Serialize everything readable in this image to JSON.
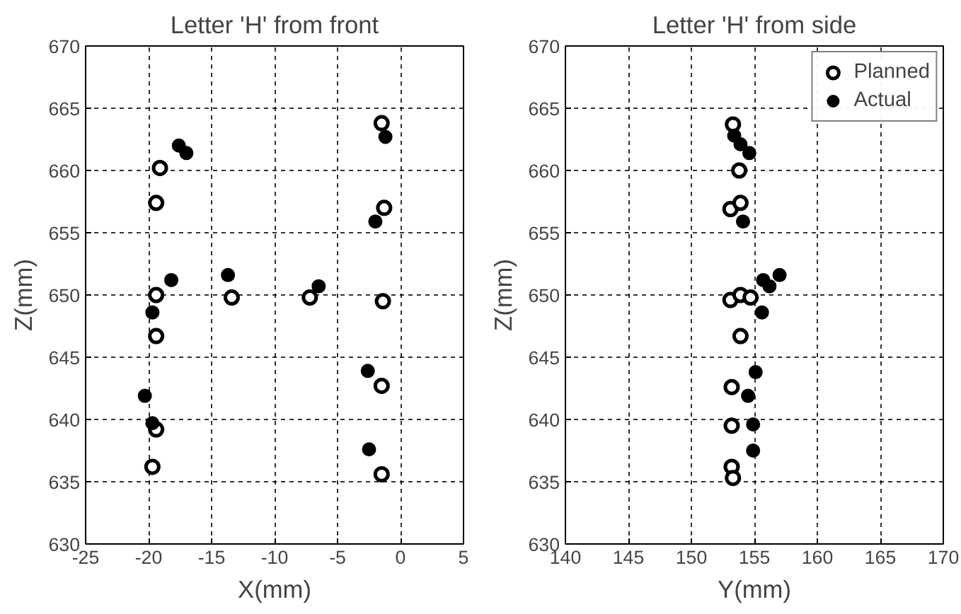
{
  "chart_data": [
    {
      "type": "scatter",
      "title": "Letter 'H' from front",
      "xlabel": "X(mm)",
      "ylabel": "Z(mm)",
      "xlim": [
        -25,
        5
      ],
      "xticks": [
        -25,
        -20,
        -15,
        -10,
        -5,
        0,
        5
      ],
      "ylim": [
        630,
        670
      ],
      "yticks": [
        630,
        635,
        640,
        645,
        650,
        655,
        660,
        665,
        670
      ],
      "grid": true,
      "marker": "circle",
      "series": [
        {
          "color": "#000000",
          "x": [
            -1.5,
            -19.1,
            -19.4,
            -1.3,
            -19.4,
            -13.4,
            -7.2,
            -1.4,
            -19.4,
            -1.5,
            -19.4,
            -19.7,
            -1.5
          ],
          "values": [
            663.8,
            660.2,
            657.4,
            657.0,
            650.0,
            649.8,
            649.8,
            649.5,
            646.7,
            642.7,
            639.2,
            636.2,
            635.6
          ]
        },
        {
          "color": "#000000",
          "x": [
            -17.6,
            -17.0,
            -1.2,
            -2.0,
            -18.2,
            -13.7,
            -6.5,
            -19.7,
            -2.6,
            -20.3,
            -19.7,
            -2.5
          ],
          "values": [
            662.0,
            661.4,
            662.7,
            655.9,
            651.2,
            651.6,
            650.7,
            648.6,
            643.9,
            641.9,
            639.7,
            637.6
          ]
        }
      ]
    },
    {
      "type": "scatter",
      "title": "Letter 'H' from side",
      "xlabel": "Y(mm)",
      "ylabel": "Z(mm)",
      "xlim": [
        140,
        170
      ],
      "xticks": [
        140,
        145,
        150,
        155,
        160,
        165,
        170
      ],
      "ylim": [
        630,
        670
      ],
      "yticks": [
        630,
        635,
        640,
        645,
        650,
        655,
        660,
        665,
        670
      ],
      "grid": true,
      "legend": "top right",
      "marker": "circle",
      "series": [
        {
          "name": "Planned",
          "color": "#000000",
          "x": [
            153.3,
            153.8,
            153.1,
            153.9,
            153.1,
            153.9,
            154.7,
            153.9,
            153.2,
            153.2,
            153.2,
            153.3
          ],
          "values": [
            663.7,
            660.0,
            656.9,
            657.4,
            649.6,
            650.0,
            649.8,
            646.7,
            642.6,
            639.5,
            636.2,
            635.3
          ]
        },
        {
          "name": "Actual",
          "color": "#000000",
          "x": [
            153.4,
            153.9,
            154.6,
            154.1,
            155.7,
            156.2,
            157.0,
            155.6,
            155.1,
            154.5,
            154.9,
            154.9
          ],
          "values": [
            662.8,
            662.1,
            661.4,
            655.9,
            651.2,
            650.7,
            651.6,
            648.6,
            643.8,
            641.9,
            639.6,
            637.5
          ]
        }
      ]
    }
  ]
}
